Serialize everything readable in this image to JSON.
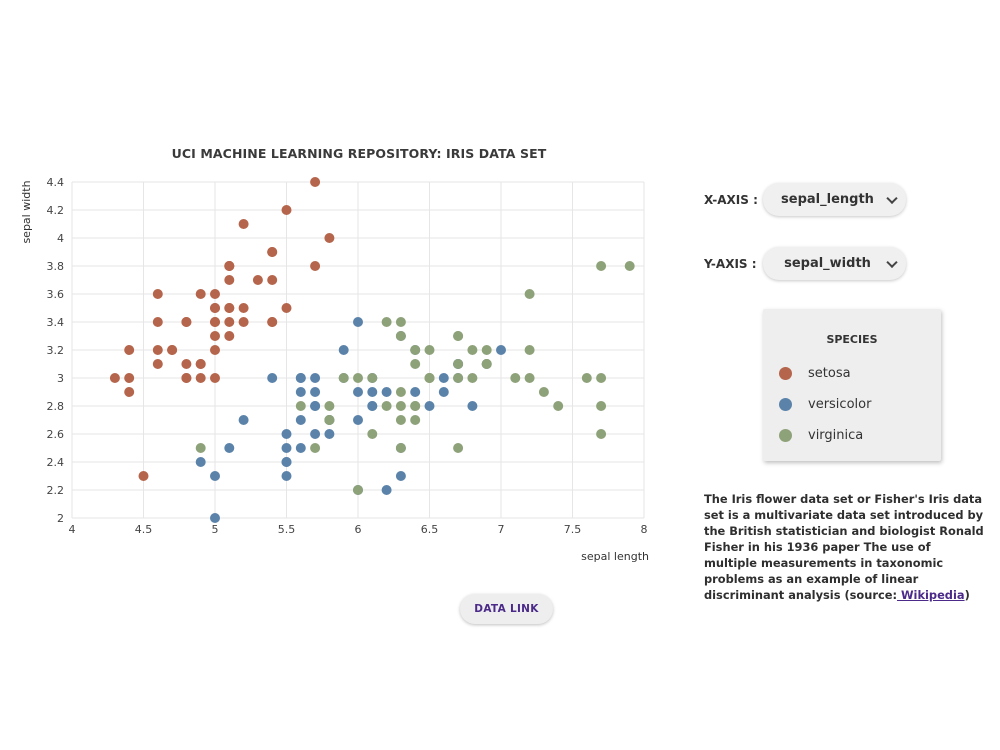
{
  "chart_data": {
    "type": "scatter",
    "title": "UCI MACHINE LEARNING REPOSITORY: IRIS DATA SET",
    "xlabel": "sepal length",
    "ylabel": "sepal width",
    "xlim": [
      4,
      8
    ],
    "ylim": [
      2,
      4.4
    ],
    "x_ticks": [
      "4",
      "4.5",
      "5",
      "5.5",
      "6",
      "6.5",
      "7",
      "7.5",
      "8"
    ],
    "y_ticks": [
      "2",
      "2.2",
      "2.4",
      "2.6",
      "2.8",
      "3",
      "3.2",
      "3.4",
      "3.6",
      "3.8",
      "4",
      "4.2",
      "4.4"
    ],
    "grid": true,
    "series": [
      {
        "name": "setosa",
        "color": "#b5654b",
        "points": [
          [
            5.1,
            3.5
          ],
          [
            4.9,
            3.0
          ],
          [
            4.7,
            3.2
          ],
          [
            4.6,
            3.1
          ],
          [
            5.0,
            3.6
          ],
          [
            5.4,
            3.9
          ],
          [
            4.6,
            3.4
          ],
          [
            5.0,
            3.4
          ],
          [
            4.4,
            2.9
          ],
          [
            4.9,
            3.1
          ],
          [
            5.4,
            3.7
          ],
          [
            4.8,
            3.4
          ],
          [
            4.8,
            3.0
          ],
          [
            4.3,
            3.0
          ],
          [
            5.8,
            4.0
          ],
          [
            5.7,
            4.4
          ],
          [
            5.4,
            3.9
          ],
          [
            5.1,
            3.5
          ],
          [
            5.7,
            3.8
          ],
          [
            5.1,
            3.8
          ],
          [
            5.4,
            3.4
          ],
          [
            5.1,
            3.7
          ],
          [
            4.6,
            3.6
          ],
          [
            5.1,
            3.3
          ],
          [
            4.8,
            3.4
          ],
          [
            5.0,
            3.0
          ],
          [
            5.0,
            3.4
          ],
          [
            5.2,
            3.5
          ],
          [
            5.2,
            3.4
          ],
          [
            4.7,
            3.2
          ],
          [
            4.8,
            3.1
          ],
          [
            5.4,
            3.4
          ],
          [
            5.2,
            4.1
          ],
          [
            5.5,
            4.2
          ],
          [
            4.9,
            3.1
          ],
          [
            5.0,
            3.2
          ],
          [
            5.5,
            3.5
          ],
          [
            4.9,
            3.6
          ],
          [
            4.4,
            3.0
          ],
          [
            5.1,
            3.4
          ],
          [
            5.0,
            3.5
          ],
          [
            4.5,
            2.3
          ],
          [
            4.4,
            3.2
          ],
          [
            5.0,
            3.5
          ],
          [
            5.1,
            3.8
          ],
          [
            4.8,
            3.0
          ],
          [
            5.1,
            3.8
          ],
          [
            4.6,
            3.2
          ],
          [
            5.3,
            3.7
          ],
          [
            5.0,
            3.3
          ]
        ]
      },
      {
        "name": "versicolor",
        "color": "#5b83aa",
        "points": [
          [
            7.0,
            3.2
          ],
          [
            6.4,
            3.2
          ],
          [
            6.9,
            3.1
          ],
          [
            5.5,
            2.3
          ],
          [
            6.5,
            2.8
          ],
          [
            5.7,
            2.8
          ],
          [
            6.3,
            3.3
          ],
          [
            4.9,
            2.4
          ],
          [
            6.6,
            2.9
          ],
          [
            5.2,
            2.7
          ],
          [
            5.0,
            2.0
          ],
          [
            5.9,
            3.0
          ],
          [
            6.0,
            2.2
          ],
          [
            6.1,
            2.9
          ],
          [
            5.6,
            2.9
          ],
          [
            6.7,
            3.1
          ],
          [
            5.6,
            3.0
          ],
          [
            5.8,
            2.7
          ],
          [
            6.2,
            2.2
          ],
          [
            5.6,
            2.5
          ],
          [
            5.9,
            3.2
          ],
          [
            6.1,
            2.8
          ],
          [
            6.3,
            2.5
          ],
          [
            6.1,
            2.8
          ],
          [
            6.4,
            2.9
          ],
          [
            6.6,
            3.0
          ],
          [
            6.8,
            2.8
          ],
          [
            6.7,
            3.0
          ],
          [
            6.0,
            2.9
          ],
          [
            5.7,
            2.6
          ],
          [
            5.5,
            2.4
          ],
          [
            5.5,
            2.4
          ],
          [
            5.8,
            2.7
          ],
          [
            6.0,
            2.7
          ],
          [
            5.4,
            3.0
          ],
          [
            6.0,
            3.4
          ],
          [
            6.7,
            3.1
          ],
          [
            6.3,
            2.3
          ],
          [
            5.6,
            3.0
          ],
          [
            5.5,
            2.5
          ],
          [
            5.5,
            2.6
          ],
          [
            6.1,
            3.0
          ],
          [
            5.8,
            2.6
          ],
          [
            5.0,
            2.3
          ],
          [
            5.6,
            2.7
          ],
          [
            5.7,
            3.0
          ],
          [
            5.7,
            2.9
          ],
          [
            6.2,
            2.9
          ],
          [
            5.1,
            2.5
          ],
          [
            5.7,
            2.8
          ]
        ]
      },
      {
        "name": "virginica",
        "color": "#8ea27a",
        "points": [
          [
            6.3,
            3.3
          ],
          [
            5.8,
            2.7
          ],
          [
            7.1,
            3.0
          ],
          [
            6.3,
            2.9
          ],
          [
            6.5,
            3.0
          ],
          [
            7.6,
            3.0
          ],
          [
            4.9,
            2.5
          ],
          [
            7.3,
            2.9
          ],
          [
            6.7,
            2.5
          ],
          [
            7.2,
            3.6
          ],
          [
            6.5,
            3.2
          ],
          [
            6.4,
            2.7
          ],
          [
            6.8,
            3.0
          ],
          [
            5.7,
            2.5
          ],
          [
            5.8,
            2.8
          ],
          [
            6.4,
            3.2
          ],
          [
            6.5,
            3.0
          ],
          [
            7.7,
            3.8
          ],
          [
            7.7,
            2.6
          ],
          [
            6.0,
            2.2
          ],
          [
            6.9,
            3.2
          ],
          [
            5.6,
            2.8
          ],
          [
            7.7,
            2.8
          ],
          [
            6.3,
            2.7
          ],
          [
            6.7,
            3.3
          ],
          [
            7.2,
            3.2
          ],
          [
            6.2,
            2.8
          ],
          [
            6.1,
            3.0
          ],
          [
            6.4,
            2.8
          ],
          [
            7.2,
            3.0
          ],
          [
            7.4,
            2.8
          ],
          [
            7.9,
            3.8
          ],
          [
            6.4,
            2.8
          ],
          [
            6.3,
            2.8
          ],
          [
            6.1,
            2.6
          ],
          [
            7.7,
            3.0
          ],
          [
            6.3,
            3.4
          ],
          [
            6.4,
            3.1
          ],
          [
            6.0,
            3.0
          ],
          [
            6.9,
            3.1
          ],
          [
            6.7,
            3.1
          ],
          [
            6.9,
            3.1
          ],
          [
            5.8,
            2.7
          ],
          [
            6.8,
            3.2
          ],
          [
            6.7,
            3.3
          ],
          [
            6.7,
            3.0
          ],
          [
            6.3,
            2.5
          ],
          [
            6.5,
            3.0
          ],
          [
            6.2,
            3.4
          ],
          [
            5.9,
            3.0
          ]
        ]
      }
    ]
  },
  "controls": {
    "x_axis_label": "X-AXIS :",
    "x_axis_value": "sepal_length",
    "y_axis_label": "Y-AXIS :",
    "y_axis_value": "sepal_width"
  },
  "legend": {
    "title": "SPECIES",
    "items": [
      {
        "label": "setosa",
        "color": "#b5654b"
      },
      {
        "label": "versicolor",
        "color": "#5b83aa"
      },
      {
        "label": "virginica",
        "color": "#8ea27a"
      }
    ]
  },
  "description": {
    "text": "The Iris flower data set or Fisher's Iris data set is a multivariate data set introduced by the British statistician and biologist Ronald Fisher in his 1936 paper The use of multiple measurements in taxonomic problems as an example of linear discriminant analysis (source:",
    "link_text": " Wikipedia",
    "suffix": ")"
  },
  "data_link_label": "DATA LINK"
}
